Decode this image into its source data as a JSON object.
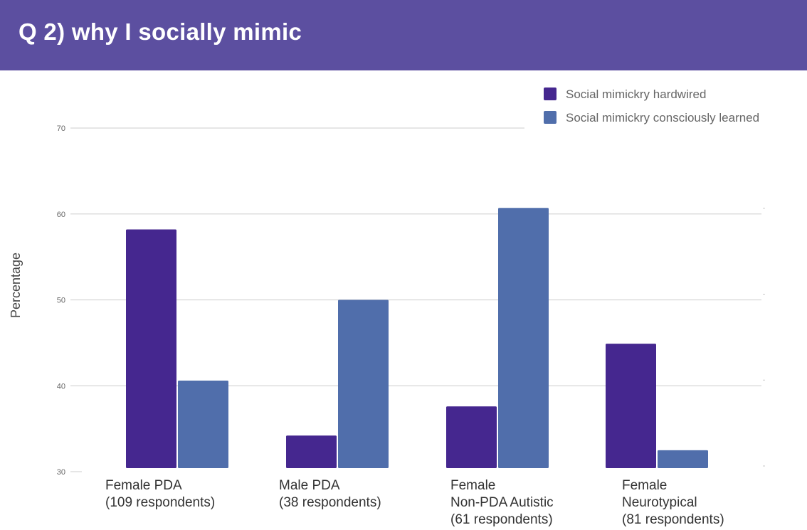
{
  "header": {
    "title": "Q 2) why I socially mimic",
    "background": "#5c4fa0"
  },
  "chart_data": {
    "type": "bar",
    "title": "Q 2) why I socially mimic",
    "xlabel": "",
    "ylabel": "Percentage",
    "ylim": [
      30,
      70
    ],
    "yticks": [
      30,
      40,
      50,
      60,
      70
    ],
    "grid": true,
    "legend_position": "top-right",
    "categories": [
      [
        "Female PDA",
        "(109 respondents)"
      ],
      [
        "Male PDA",
        "(38 respondents)"
      ],
      [
        "Female",
        "Non-PDA Autistic",
        "(61 respondents)"
      ],
      [
        "Female",
        "Neurotypical",
        "(81 respondents)"
      ]
    ],
    "series": [
      {
        "name": "Social mimickry hardwired",
        "color": "#45278f",
        "values": [
          58.2,
          34.2,
          37.6,
          44.9
        ]
      },
      {
        "name": "Social mimickry consciously learned",
        "color": "#506eab",
        "values": [
          40.6,
          50.0,
          60.7,
          32.5
        ]
      }
    ]
  }
}
